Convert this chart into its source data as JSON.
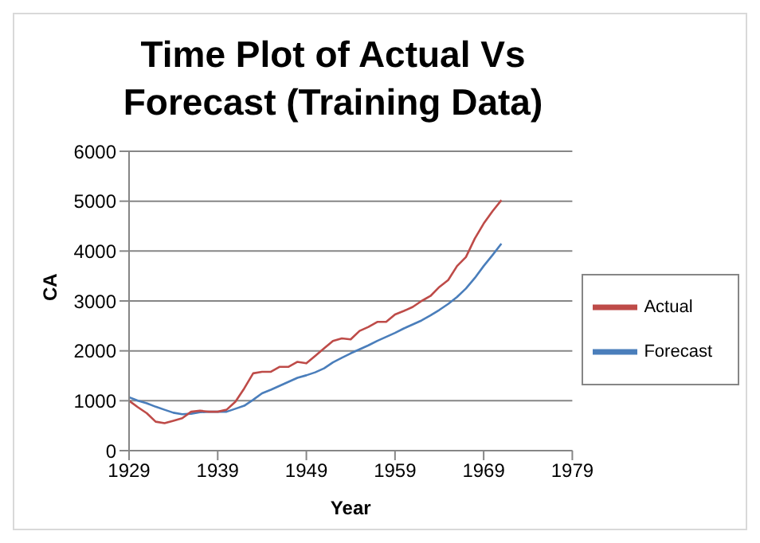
{
  "chart_data": {
    "type": "line",
    "title": "Time Plot of Actual Vs Forecast (Training Data)",
    "xlabel": "Year",
    "ylabel": "CA",
    "x": [
      1929,
      1930,
      1931,
      1932,
      1933,
      1934,
      1935,
      1936,
      1937,
      1938,
      1939,
      1940,
      1941,
      1942,
      1943,
      1944,
      1945,
      1946,
      1947,
      1948,
      1949,
      1950,
      1951,
      1952,
      1953,
      1954,
      1955,
      1956,
      1957,
      1958,
      1959,
      1960,
      1961,
      1962,
      1963,
      1964,
      1965,
      1966,
      1967,
      1968,
      1969,
      1970,
      1971
    ],
    "series": [
      {
        "name": "Forecast",
        "color": "#4a7ebb",
        "values": [
          1070,
          1000,
          950,
          880,
          820,
          760,
          730,
          740,
          770,
          780,
          780,
          780,
          840,
          900,
          1020,
          1150,
          1220,
          1300,
          1380,
          1460,
          1510,
          1570,
          1650,
          1770,
          1860,
          1950,
          2030,
          2110,
          2200,
          2280,
          2360,
          2450,
          2530,
          2610,
          2710,
          2820,
          2940,
          3080,
          3250,
          3460,
          3700,
          3920,
          4150
        ]
      },
      {
        "name": "Actual",
        "color": "#be4b48",
        "values": [
          1000,
          870,
          750,
          580,
          550,
          600,
          650,
          780,
          800,
          780,
          780,
          820,
          980,
          1250,
          1550,
          1580,
          1580,
          1680,
          1680,
          1780,
          1750,
          1900,
          2050,
          2200,
          2250,
          2230,
          2400,
          2480,
          2580,
          2580,
          2730,
          2800,
          2880,
          3000,
          3100,
          3280,
          3420,
          3700,
          3880,
          4250,
          4550,
          4800,
          5020
        ]
      }
    ],
    "xlim": [
      1929,
      1979
    ],
    "xticks": [
      1929,
      1939,
      1949,
      1959,
      1969,
      1979
    ],
    "ylim": [
      0,
      6000
    ],
    "yticks": [
      0,
      1000,
      2000,
      3000,
      4000,
      5000,
      6000
    ],
    "grid": "y",
    "legend": "right",
    "marker": "none",
    "line_style": "solid"
  }
}
